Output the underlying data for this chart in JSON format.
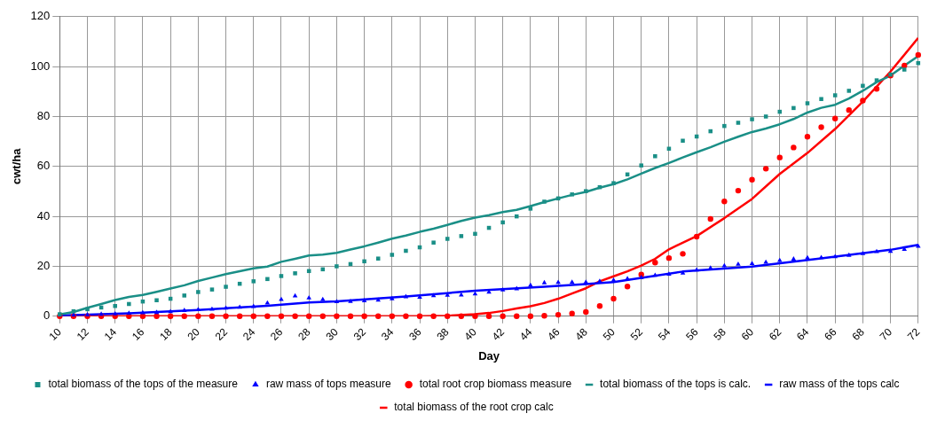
{
  "chart_data": {
    "type": "scatter",
    "xlabel": "Day",
    "ylabel": "cwt/ha",
    "x": [
      10,
      11,
      12,
      13,
      14,
      15,
      16,
      17,
      18,
      19,
      20,
      21,
      22,
      23,
      24,
      25,
      26,
      27,
      28,
      29,
      30,
      31,
      32,
      33,
      34,
      35,
      36,
      37,
      38,
      39,
      40,
      41,
      42,
      43,
      44,
      45,
      46,
      47,
      48,
      49,
      50,
      51,
      52,
      53,
      54,
      55,
      56,
      57,
      58,
      59,
      60,
      61,
      62,
      63,
      64,
      65,
      66,
      67,
      68,
      69,
      70,
      71,
      72
    ],
    "series": [
      {
        "name": "total biomass of the tops is calc.",
        "type": "line",
        "color": "#1a8f87",
        "marker": "none",
        "values": [
          0.7,
          1.7,
          3.4,
          4.9,
          6.5,
          7.7,
          8.5,
          9.8,
          11.1,
          12.4,
          14.1,
          15.5,
          16.9,
          18,
          19.2,
          19.9,
          21.8,
          23,
          24.3,
          24.7,
          25.4,
          26.7,
          28,
          29.5,
          31.1,
          32.3,
          33.8,
          35.1,
          36.6,
          38.2,
          39.5,
          40.5,
          41.7,
          42.6,
          44.1,
          45.7,
          47.2,
          48.6,
          49.8,
          51.5,
          52.9,
          54.8,
          57.1,
          59.4,
          61.4,
          63.6,
          65.7,
          67.7,
          69.9,
          71.9,
          73.8,
          75.2,
          76.9,
          79,
          81.6,
          83.5,
          84.7,
          87.2,
          90.3,
          93.8,
          96.4,
          100.4,
          104.2
        ]
      },
      {
        "name": "total biomass of the tops of the measure",
        "type": "scatter",
        "color": "#1a8f87",
        "marker": "square",
        "values": [
          0.8,
          2,
          2.8,
          3.5,
          4.1,
          4.9,
          5.9,
          6.4,
          7,
          8.3,
          9.7,
          10.7,
          11.8,
          13,
          14,
          14.9,
          16.1,
          17.2,
          18.1,
          18.8,
          20,
          20.9,
          22,
          23.1,
          24.6,
          26.2,
          27.6,
          29.5,
          31,
          32.1,
          33,
          35.4,
          37.6,
          40,
          43.1,
          45.9,
          47.2,
          48.8,
          50.1,
          51.7,
          53.3,
          56.8,
          60.4,
          64.1,
          67.1,
          70.3,
          72,
          74.1,
          76.2,
          77.5,
          78.9,
          80,
          81.9,
          83.4,
          85.3,
          87,
          88.5,
          90.3,
          92.3,
          94.5,
          96.8,
          98.8,
          101.4
        ]
      },
      {
        "name": "raw mass of the tops calc",
        "type": "line",
        "color": "#0000ff",
        "marker": "none",
        "x": [
          10,
          15,
          20,
          25,
          28,
          30,
          35,
          40,
          45,
          48,
          50,
          52,
          55,
          60,
          65,
          70,
          72
        ],
        "values": [
          0.3,
          1.2,
          2.5,
          4.2,
          5.5,
          6,
          7.9,
          10.2,
          11.8,
          12.9,
          13.7,
          15.4,
          17.9,
          19.9,
          23.2,
          26.6,
          28.6
        ]
      },
      {
        "name": "raw mass of tops measure",
        "type": "scatter",
        "color": "#0000ff",
        "marker": "triangle",
        "values": [
          0.5,
          0.5,
          0.6,
          0.8,
          0.9,
          1.2,
          1.4,
          1.5,
          1.8,
          2.3,
          2.6,
          2.8,
          3.2,
          3.6,
          3.9,
          5.3,
          6.7,
          8.1,
          7.3,
          6.7,
          5.8,
          5.9,
          6.2,
          6.4,
          7,
          7.8,
          7.6,
          8.2,
          8.4,
          8.5,
          8.9,
          9.6,
          10.5,
          11,
          12.4,
          13.4,
          13.5,
          13.6,
          13.6,
          14,
          14.4,
          15,
          15.5,
          16.4,
          16.8,
          17.3,
          18.5,
          19.3,
          20.2,
          20.8,
          21.1,
          21.6,
          22.3,
          22.9,
          23.4,
          23.5,
          23.8,
          24.4,
          25.1,
          25.9,
          26,
          26.8,
          28
        ]
      },
      {
        "name": "total biomass of the root crop calc",
        "type": "line",
        "color": "#ff0000",
        "marker": "none",
        "x": [
          10,
          36,
          38,
          40,
          41,
          42,
          43,
          44,
          45,
          46,
          47,
          48,
          49,
          50,
          51,
          52,
          53,
          54,
          56,
          58,
          60,
          62,
          64,
          66,
          68,
          70,
          72
        ],
        "values": [
          0,
          0,
          0.2,
          0.8,
          1.3,
          2.1,
          3.1,
          4,
          5.3,
          7,
          9.1,
          11.2,
          14,
          16,
          18,
          20.3,
          23,
          26.8,
          32.1,
          39.3,
          47,
          57,
          65.4,
          75,
          86,
          98,
          111.5
        ]
      },
      {
        "name": "total root crop biomass measure",
        "type": "scatter",
        "color": "#ff0000",
        "marker": "circle",
        "values": [
          0,
          0,
          0,
          0,
          0,
          0,
          0,
          0,
          0,
          0,
          0,
          0,
          0,
          0,
          0,
          0,
          0,
          0,
          0,
          0,
          0,
          0,
          0,
          0,
          0,
          0,
          0,
          0,
          0,
          0,
          0,
          0,
          0,
          0,
          0,
          0.2,
          0.6,
          1.1,
          1.7,
          4.1,
          7,
          11.9,
          16.7,
          21.5,
          23.3,
          25,
          31.9,
          39,
          46,
          50.3,
          54.7,
          59.1,
          63.6,
          67.6,
          71.9,
          75.7,
          79.2,
          82.6,
          86.4,
          91.1,
          96.4,
          100.4,
          104.7
        ]
      }
    ],
    "xlim": [
      10,
      72
    ],
    "xticks": [
      10,
      12,
      14,
      16,
      18,
      20,
      22,
      24,
      26,
      28,
      30,
      32,
      34,
      36,
      38,
      40,
      42,
      44,
      46,
      48,
      50,
      52,
      54,
      56,
      58,
      60,
      62,
      64,
      66,
      68,
      70,
      72
    ],
    "ylim": [
      0,
      120
    ],
    "yticks": [
      0,
      20,
      40,
      60,
      80,
      100,
      120
    ],
    "grid": true,
    "legend": "bottom"
  }
}
